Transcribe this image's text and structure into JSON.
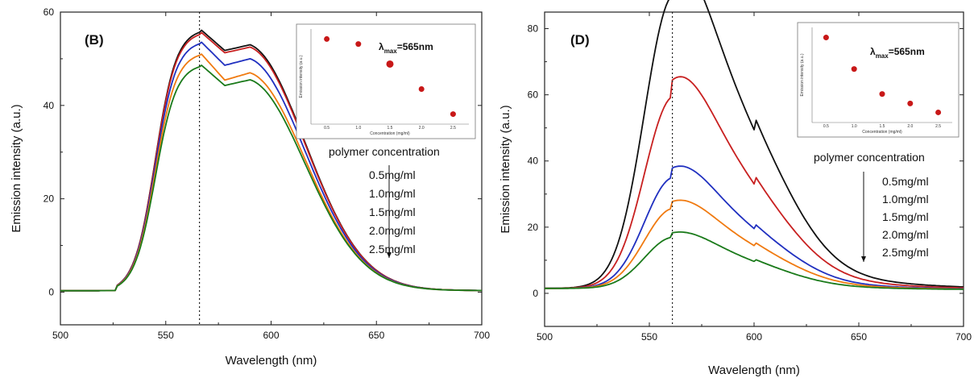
{
  "chart_data": [
    {
      "type": "line",
      "panel_label": "(B)",
      "xlabel": "Wavelength (nm)",
      "ylabel": "Emission intensity (a.u.)",
      "xlim": [
        500,
        700
      ],
      "ylim": [
        -7,
        60
      ],
      "xticks": [
        500,
        550,
        600,
        650,
        700
      ],
      "yticks": [
        0,
        20,
        40,
        60
      ],
      "peak_marker_x": 566,
      "lambda_label": "λ",
      "lambda_sub": "max",
      "lambda_value": "=565nm",
      "legend_title": "polymer concentration",
      "series": [
        {
          "name": "0.5mg/ml",
          "color": "#111111",
          "peak": 56.5,
          "shoulder": 53.0
        },
        {
          "name": "1.0mg/ml",
          "color": "#c82020",
          "peak": 56.0,
          "shoulder": 52.5
        },
        {
          "name": "1.5mg/ml",
          "color": "#2030c0",
          "peak": 54.0,
          "shoulder": 50.0
        },
        {
          "name": "2.0mg/ml",
          "color": "#f07a10",
          "peak": 51.5,
          "shoulder": 47.0
        },
        {
          "name": "2.5mg/ml",
          "color": "#1a7a1a",
          "peak": 49.0,
          "shoulder": 45.5
        }
      ],
      "inset": {
        "xlabel": "Concentration (mg/ml)",
        "ylabel": "Emission intensity (a.u.)",
        "xticks": [
          "0.5",
          "1.0",
          "1.5",
          "2.0",
          "2.5"
        ],
        "points": [
          [
            0.5,
            56.5
          ],
          [
            1.0,
            56.0
          ],
          [
            1.5,
            54.0
          ],
          [
            2.0,
            51.5
          ],
          [
            2.5,
            49.0
          ]
        ],
        "ylim": [
          48,
          57.5
        ],
        "color": "#c81818"
      }
    },
    {
      "type": "line",
      "panel_label": "(D)",
      "xlabel": "Wavelength (nm)",
      "ylabel": "Emission intensity (a.u.)",
      "xlim": [
        500,
        700
      ],
      "ylim": [
        -10,
        85
      ],
      "xticks": [
        500,
        550,
        600,
        650,
        700
      ],
      "yticks": [
        0,
        20,
        40,
        60,
        80
      ],
      "peak_marker_x": 561,
      "lambda_label": "λ",
      "lambda_sub": "max",
      "lambda_value": "=565nm",
      "legend_title": "polymer concentration",
      "series": [
        {
          "name": "0.5mg/ml",
          "color": "#111111",
          "peak": 76.5,
          "shoulder": 60.5
        },
        {
          "name": "1.0mg/ml",
          "color": "#c82020",
          "peak": 50.0,
          "shoulder": 40.0
        },
        {
          "name": "1.5mg/ml",
          "color": "#2030c0",
          "peak": 29.0,
          "shoulder": 23.0
        },
        {
          "name": "2.0mg/ml",
          "color": "#f07a10",
          "peak": 21.0,
          "shoulder": 16.5
        },
        {
          "name": "2.5mg/ml",
          "color": "#1a7a1a",
          "peak": 13.5,
          "shoulder": 10.5
        }
      ],
      "inset": {
        "xlabel": "Concentration (mg/ml)",
        "ylabel": "Emission intensity (a.u.)",
        "xticks": [
          "0.5",
          "1.0",
          "1.5",
          "2.0",
          "2.5"
        ],
        "points": [
          [
            0.5,
            76.5
          ],
          [
            1.0,
            50.0
          ],
          [
            1.5,
            29.0
          ],
          [
            2.0,
            21.0
          ],
          [
            2.5,
            13.5
          ]
        ],
        "ylim": [
          5,
          85
        ],
        "color": "#c81818"
      }
    }
  ]
}
